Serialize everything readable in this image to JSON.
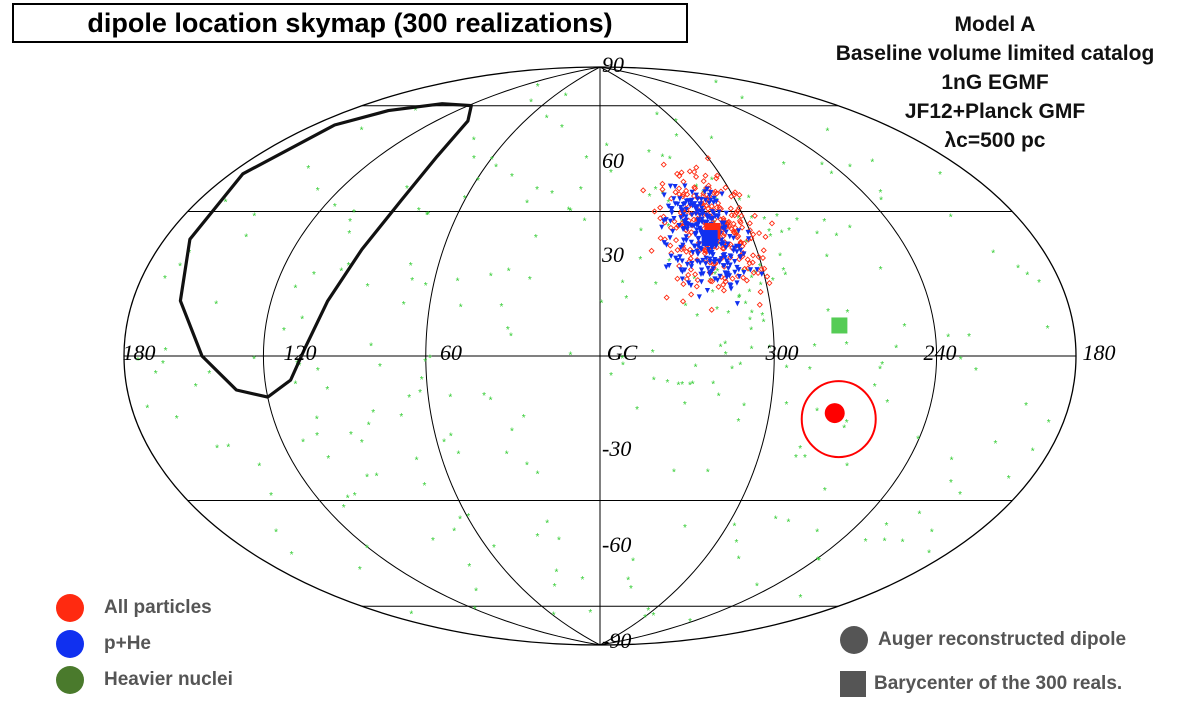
{
  "chart_data": {
    "type": "scatter",
    "projection": "aitoff-galactic",
    "title": "dipole location skymap (300 realizations)",
    "model_text": [
      "Model A",
      "Baseline volume limited catalog",
      "1nG EGMF",
      "JF12+Planck GMF",
      "λc=500 pc"
    ],
    "lat_tick_labels": [
      "90",
      "60",
      "30",
      "-30",
      "-60",
      "-90"
    ],
    "lon_tick_labels": [
      "180",
      "120",
      "60",
      "GC",
      "300",
      "240",
      "180"
    ],
    "lat_ticks": [
      60,
      30,
      0,
      -30,
      -60
    ],
    "lon_meridians": [
      120,
      60,
      0,
      -60,
      -120
    ],
    "colors": {
      "all": "#ff2a10",
      "phe": "#1030f0",
      "heavy": "#4a7a2c",
      "heavy_points": "#33cc33",
      "reconstructed": "#555555",
      "contour": "#111111"
    },
    "legend": {
      "left": [
        {
          "label": "All particles",
          "color": "#ff2a10"
        },
        {
          "label": "p+He",
          "color": "#1030f0"
        },
        {
          "label": "Heavier nuclei",
          "color": "#4a7a2c"
        }
      ],
      "right": [
        {
          "label": "Auger reconstructed dipole",
          "marker": "circle",
          "color": "#555555"
        },
        {
          "label": "Barycenter  of the 300 reals.",
          "marker": "square",
          "color": "#555555"
        }
      ]
    },
    "series": [
      {
        "name": "All particles",
        "marker": "open-diamond",
        "color": "#ff2a10",
        "count": 300,
        "center_lon_deg": -45,
        "center_lat_deg": 34,
        "spread_lon_deg": 14,
        "spread_lat_deg": 12
      },
      {
        "name": "p+He",
        "marker": "triangle-down",
        "color": "#1030f0",
        "count": 300,
        "center_lon_deg": -41,
        "center_lat_deg": 33,
        "spread_lon_deg": 10,
        "spread_lat_deg": 11
      },
      {
        "name": "Heavier nuclei",
        "marker": "star",
        "color": "#33cc33",
        "count": 300,
        "distribution": "scattered over sky"
      }
    ],
    "barycenters": [
      {
        "name": "All particles",
        "lon_deg": -45,
        "lat_deg": 35,
        "color": "#ff2a10"
      },
      {
        "name": "p+He",
        "lon_deg": -43,
        "lat_deg": 33,
        "color": "#1030f0"
      },
      {
        "name": "Heavier nuclei",
        "lon_deg": -84,
        "lat_deg": 8,
        "color": "#55cc55"
      }
    ],
    "auger_dipole": {
      "lon_deg": -84,
      "lat_deg": -15,
      "color": "#ff0000",
      "uncertainty_radius_deg": 11
    },
    "contour": {
      "description": "black exclusion/visibility contour in upper-left region",
      "center_lon_deg": 130,
      "center_lat_deg": 35
    }
  }
}
